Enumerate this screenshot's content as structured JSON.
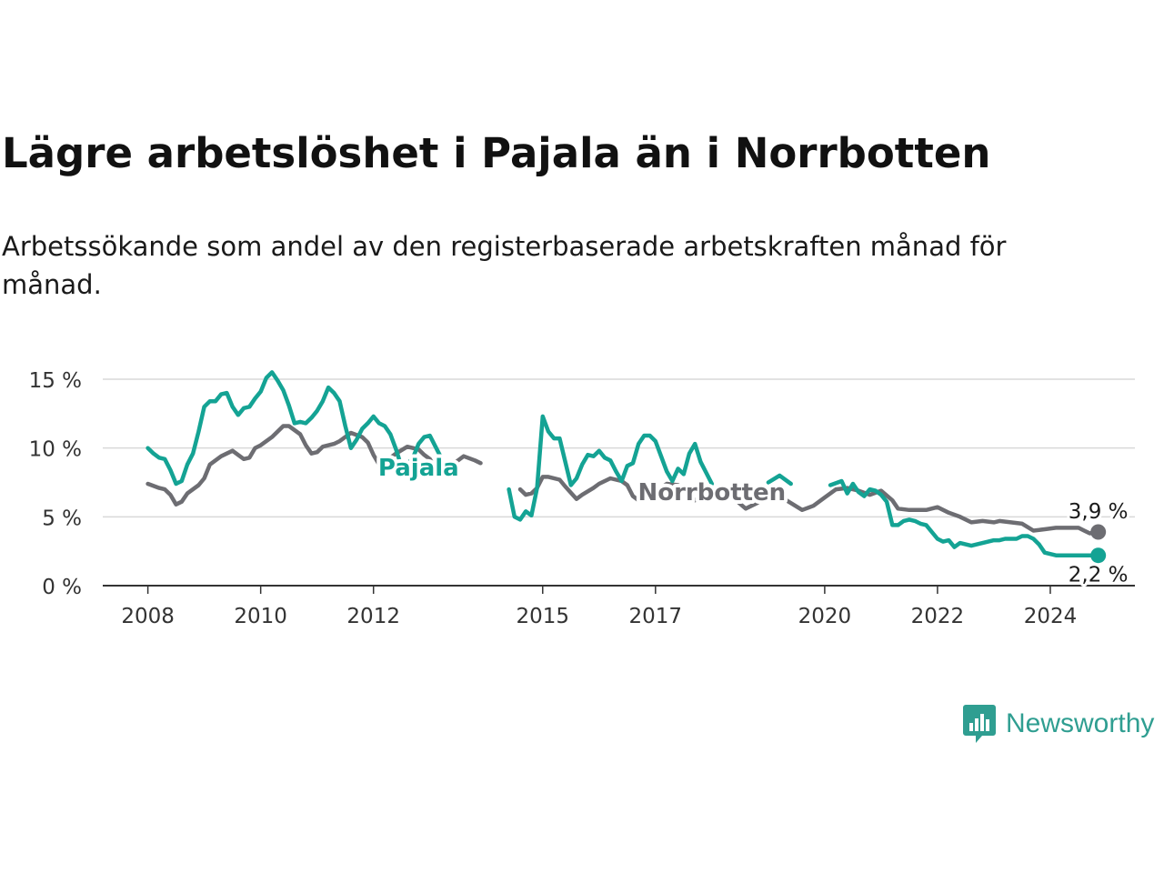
{
  "title": "Lägre arbetslöshet i Pajala än i Norrbotten",
  "subtitle": "Arbetssökande som andel av den registerbaserade arbetskraften månad för månad.",
  "brand": {
    "name": "Newsworthy"
  },
  "colors": {
    "pajala": "#14a394",
    "norrbotten": "#6d6d72",
    "grid": "#d9d9d9",
    "axis": "#333333"
  },
  "chart_data": {
    "type": "line",
    "ylim": [
      0,
      15
    ],
    "grid": true,
    "yticks": [
      {
        "value": 0,
        "label": "0 %"
      },
      {
        "value": 5,
        "label": "5 %"
      },
      {
        "value": 10,
        "label": "10 %"
      },
      {
        "value": 15,
        "label": "15 %"
      }
    ],
    "xticks": [
      {
        "value": 2008,
        "label": "2008"
      },
      {
        "value": 2010,
        "label": "2010"
      },
      {
        "value": 2012,
        "label": "2012"
      },
      {
        "value": 2015,
        "label": "2015"
      },
      {
        "value": 2017,
        "label": "2017"
      },
      {
        "value": 2020,
        "label": "2020"
      },
      {
        "value": 2022,
        "label": "2022"
      },
      {
        "value": 2024,
        "label": "2024"
      }
    ],
    "xlim": [
      2007.2,
      2025.5
    ],
    "series": [
      {
        "name": "Norrbotten",
        "end_label": "3,9 %",
        "points": [
          [
            2008.0,
            7.4
          ],
          [
            2008.2,
            7.1
          ],
          [
            2008.3,
            7.0
          ],
          [
            2008.4,
            6.6
          ],
          [
            2008.5,
            5.9
          ],
          [
            2008.6,
            6.1
          ],
          [
            2008.7,
            6.7
          ],
          [
            2008.9,
            7.3
          ],
          [
            2009.0,
            7.8
          ],
          [
            2009.1,
            8.8
          ],
          [
            2009.3,
            9.4
          ],
          [
            2009.4,
            9.6
          ],
          [
            2009.5,
            9.8
          ],
          [
            2009.7,
            9.2
          ],
          [
            2009.8,
            9.3
          ],
          [
            2009.9,
            10.0
          ],
          [
            2010.0,
            10.2
          ],
          [
            2010.2,
            10.8
          ],
          [
            2010.4,
            11.6
          ],
          [
            2010.5,
            11.6
          ],
          [
            2010.7,
            11.0
          ],
          [
            2010.8,
            10.2
          ],
          [
            2010.9,
            9.6
          ],
          [
            2011.0,
            9.7
          ],
          [
            2011.1,
            10.1
          ],
          [
            2011.3,
            10.3
          ],
          [
            2011.4,
            10.5
          ],
          [
            2011.6,
            11.1
          ],
          [
            2011.8,
            10.8
          ],
          [
            2011.9,
            10.4
          ],
          [
            2012.0,
            9.5
          ],
          [
            2012.1,
            8.8
          ],
          [
            2012.3,
            9.3
          ],
          [
            2012.4,
            9.6
          ],
          [
            2012.6,
            10.1
          ],
          [
            2012.8,
            9.9
          ],
          [
            2012.9,
            9.5
          ],
          [
            2013.0,
            9.2
          ],
          [
            2013.1,
            8.5
          ],
          [
            2013.2,
            8.2
          ],
          [
            2013.4,
            8.8
          ],
          [
            2013.5,
            9.1
          ],
          [
            2013.6,
            9.4
          ],
          [
            2013.8,
            9.1
          ],
          [
            2013.9,
            8.9
          ],
          [
            2014.2,
            null
          ],
          [
            2014.6,
            7.0
          ],
          [
            2014.7,
            6.6
          ],
          [
            2014.8,
            6.7
          ],
          [
            2014.9,
            7.1
          ],
          [
            2015.0,
            7.9
          ],
          [
            2015.1,
            7.9
          ],
          [
            2015.3,
            7.7
          ],
          [
            2015.4,
            7.2
          ],
          [
            2015.6,
            6.3
          ],
          [
            2015.7,
            6.6
          ],
          [
            2015.9,
            7.1
          ],
          [
            2016.0,
            7.4
          ],
          [
            2016.2,
            7.8
          ],
          [
            2016.4,
            7.6
          ],
          [
            2016.5,
            7.3
          ],
          [
            2016.6,
            6.5
          ],
          [
            2016.7,
            6.2
          ],
          [
            2016.9,
            6.6
          ],
          [
            2017.0,
            6.9
          ],
          [
            2017.1,
            7.1
          ],
          [
            2017.2,
            7.4
          ],
          [
            2017.4,
            7.3
          ],
          [
            2017.6,
            6.7
          ],
          [
            2017.7,
            6.2
          ],
          [
            2017.9,
            6.5
          ],
          [
            2018.0,
            6.9
          ],
          [
            2018.2,
            6.7
          ],
          [
            2018.4,
            6.3
          ],
          [
            2018.6,
            5.6
          ],
          [
            2018.8,
            6.0
          ],
          [
            2019.0,
            6.5
          ],
          [
            2019.2,
            6.5
          ],
          [
            2019.4,
            6.0
          ],
          [
            2019.6,
            5.5
          ],
          [
            2019.8,
            5.8
          ],
          [
            2020.0,
            6.4
          ],
          [
            2020.2,
            7.0
          ],
          [
            2020.4,
            7.1
          ],
          [
            2020.6,
            6.9
          ],
          [
            2020.8,
            6.6
          ],
          [
            2021.0,
            6.9
          ],
          [
            2021.2,
            6.2
          ],
          [
            2021.3,
            5.6
          ],
          [
            2021.5,
            5.5
          ],
          [
            2021.6,
            5.5
          ],
          [
            2021.8,
            5.5
          ],
          [
            2022.0,
            5.7
          ],
          [
            2022.2,
            5.3
          ],
          [
            2022.4,
            5.0
          ],
          [
            2022.6,
            4.6
          ],
          [
            2022.8,
            4.7
          ],
          [
            2023.0,
            4.6
          ],
          [
            2023.1,
            4.7
          ],
          [
            2023.3,
            4.6
          ],
          [
            2023.5,
            4.5
          ],
          [
            2023.7,
            4.0
          ],
          [
            2023.9,
            4.1
          ],
          [
            2024.1,
            4.2
          ],
          [
            2024.3,
            4.2
          ],
          [
            2024.5,
            4.2
          ],
          [
            2024.6,
            4.0
          ],
          [
            2024.7,
            3.8
          ],
          [
            2024.85,
            3.9
          ]
        ]
      },
      {
        "name": "Pajala",
        "end_label": "2,2 %",
        "points": [
          [
            2008.0,
            10.0
          ],
          [
            2008.1,
            9.6
          ],
          [
            2008.2,
            9.3
          ],
          [
            2008.3,
            9.2
          ],
          [
            2008.4,
            8.4
          ],
          [
            2008.5,
            7.4
          ],
          [
            2008.6,
            7.6
          ],
          [
            2008.7,
            8.8
          ],
          [
            2008.8,
            9.6
          ],
          [
            2008.9,
            11.2
          ],
          [
            2009.0,
            13.0
          ],
          [
            2009.1,
            13.4
          ],
          [
            2009.2,
            13.4
          ],
          [
            2009.3,
            13.9
          ],
          [
            2009.4,
            14.0
          ],
          [
            2009.5,
            13.0
          ],
          [
            2009.6,
            12.4
          ],
          [
            2009.7,
            12.9
          ],
          [
            2009.8,
            13.0
          ],
          [
            2009.9,
            13.6
          ],
          [
            2010.0,
            14.1
          ],
          [
            2010.1,
            15.1
          ],
          [
            2010.2,
            15.5
          ],
          [
            2010.3,
            14.9
          ],
          [
            2010.4,
            14.2
          ],
          [
            2010.5,
            13.1
          ],
          [
            2010.6,
            11.8
          ],
          [
            2010.7,
            11.9
          ],
          [
            2010.8,
            11.8
          ],
          [
            2010.9,
            12.2
          ],
          [
            2011.0,
            12.7
          ],
          [
            2011.1,
            13.4
          ],
          [
            2011.2,
            14.4
          ],
          [
            2011.3,
            14.0
          ],
          [
            2011.4,
            13.4
          ],
          [
            2011.5,
            11.6
          ],
          [
            2011.6,
            10.0
          ],
          [
            2011.7,
            10.6
          ],
          [
            2011.8,
            11.4
          ],
          [
            2011.9,
            11.8
          ],
          [
            2012.0,
            12.3
          ],
          [
            2012.1,
            11.8
          ],
          [
            2012.2,
            11.6
          ],
          [
            2012.3,
            11.0
          ],
          [
            2012.4,
            9.9
          ],
          [
            2012.5,
            8.6
          ],
          [
            2012.6,
            8.8
          ],
          [
            2012.7,
            9.3
          ],
          [
            2012.8,
            10.3
          ],
          [
            2012.9,
            10.8
          ],
          [
            2013.0,
            10.9
          ],
          [
            2013.1,
            10.1
          ],
          [
            2013.2,
            9.3
          ],
          [
            2013.4,
            null
          ],
          [
            2014.4,
            7.0
          ],
          [
            2014.5,
            5.0
          ],
          [
            2014.6,
            4.8
          ],
          [
            2014.7,
            5.4
          ],
          [
            2014.8,
            5.1
          ],
          [
            2014.9,
            7.1
          ],
          [
            2015.0,
            12.3
          ],
          [
            2015.1,
            11.2
          ],
          [
            2015.2,
            10.7
          ],
          [
            2015.3,
            10.7
          ],
          [
            2015.4,
            9.0
          ],
          [
            2015.5,
            7.3
          ],
          [
            2015.6,
            7.8
          ],
          [
            2015.7,
            8.8
          ],
          [
            2015.8,
            9.5
          ],
          [
            2015.9,
            9.4
          ],
          [
            2016.0,
            9.8
          ],
          [
            2016.1,
            9.3
          ],
          [
            2016.2,
            9.1
          ],
          [
            2016.3,
            8.3
          ],
          [
            2016.4,
            7.6
          ],
          [
            2016.5,
            8.7
          ],
          [
            2016.6,
            8.9
          ],
          [
            2016.7,
            10.3
          ],
          [
            2016.8,
            10.9
          ],
          [
            2016.9,
            10.9
          ],
          [
            2017.0,
            10.5
          ],
          [
            2017.1,
            9.4
          ],
          [
            2017.2,
            8.3
          ],
          [
            2017.3,
            7.6
          ],
          [
            2017.4,
            8.5
          ],
          [
            2017.5,
            8.1
          ],
          [
            2017.6,
            9.6
          ],
          [
            2017.7,
            10.3
          ],
          [
            2017.8,
            9.0
          ],
          [
            2017.9,
            8.2
          ],
          [
            2018.0,
            7.4
          ],
          [
            2018.2,
            null
          ],
          [
            2019.0,
            7.5
          ],
          [
            2019.2,
            8.0
          ],
          [
            2019.4,
            7.4
          ],
          [
            2019.7,
            null
          ],
          [
            2020.1,
            7.3
          ],
          [
            2020.3,
            7.6
          ],
          [
            2020.4,
            6.7
          ],
          [
            2020.5,
            7.4
          ],
          [
            2020.6,
            6.8
          ],
          [
            2020.7,
            6.5
          ],
          [
            2020.8,
            7.0
          ],
          [
            2020.9,
            6.9
          ],
          [
            2021.0,
            6.6
          ],
          [
            2021.1,
            6.1
          ],
          [
            2021.2,
            4.4
          ],
          [
            2021.3,
            4.4
          ],
          [
            2021.4,
            4.7
          ],
          [
            2021.5,
            4.8
          ],
          [
            2021.6,
            4.7
          ],
          [
            2021.7,
            4.5
          ],
          [
            2021.8,
            4.4
          ],
          [
            2021.9,
            3.9
          ],
          [
            2022.0,
            3.4
          ],
          [
            2022.1,
            3.2
          ],
          [
            2022.2,
            3.3
          ],
          [
            2022.3,
            2.8
          ],
          [
            2022.4,
            3.1
          ],
          [
            2022.5,
            3.0
          ],
          [
            2022.6,
            2.9
          ],
          [
            2022.7,
            3.0
          ],
          [
            2022.8,
            3.1
          ],
          [
            2022.9,
            3.2
          ],
          [
            2023.0,
            3.3
          ],
          [
            2023.1,
            3.3
          ],
          [
            2023.2,
            3.4
          ],
          [
            2023.3,
            3.4
          ],
          [
            2023.4,
            3.4
          ],
          [
            2023.5,
            3.6
          ],
          [
            2023.6,
            3.6
          ],
          [
            2023.7,
            3.4
          ],
          [
            2023.8,
            3.0
          ],
          [
            2023.9,
            2.4
          ],
          [
            2024.0,
            2.3
          ],
          [
            2024.1,
            2.2
          ],
          [
            2024.85,
            2.2
          ]
        ]
      }
    ],
    "line_labels": [
      {
        "series": "Pajala",
        "text": "Pajala",
        "x": 2012.8,
        "y": 8.0
      },
      {
        "series": "Norrbotten",
        "text": "Norrbotten",
        "x": 2018.0,
        "y": 6.2
      }
    ]
  }
}
